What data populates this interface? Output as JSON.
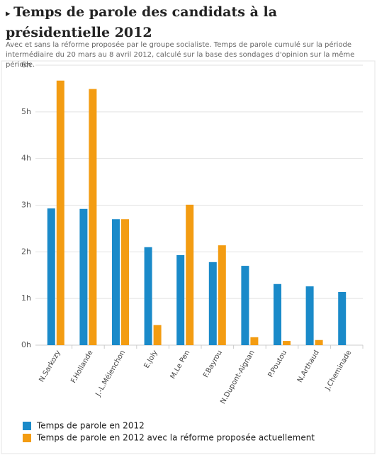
{
  "chart_data": {
    "type": "bar",
    "title": "Temps de parole des candidats à la présidentielle 2012",
    "subtitle": "Avec et sans la réforme proposée par le groupe socialiste. Temps de parole cumulé sur la période intermédiaire du 20 mars au 8 avril 2012, calculé sur la base des sondages d'opinion sur la même période.",
    "categories": [
      "N.Sarkozy",
      "F.Hollande",
      "J.-L.Mélenchon",
      "E.Joly",
      "M.Le Pen",
      "F.Bayrou",
      "N.Dupont-Aignan",
      "P.Poutou",
      "N.Arthaud",
      "J.Cheminade"
    ],
    "series": [
      {
        "name": "Temps de parole en 2012",
        "color": "#1a8ac9",
        "values": [
          2.93,
          2.92,
          2.7,
          2.1,
          1.93,
          1.78,
          1.7,
          1.31,
          1.26,
          1.14
        ]
      },
      {
        "name": "Temps de parole en 2012 avec la réforme proposée actuellement",
        "color": "#f39c12",
        "values": [
          5.67,
          5.49,
          2.7,
          0.43,
          3.01,
          2.14,
          0.17,
          0.09,
          0.11,
          null
        ]
      }
    ],
    "ylim": [
      0,
      6
    ],
    "yticks": [
      {
        "value": 0,
        "label": "0h"
      },
      {
        "value": 1,
        "label": "1h"
      },
      {
        "value": 2,
        "label": "2h"
      },
      {
        "value": 3,
        "label": "3h"
      },
      {
        "value": 4,
        "label": "4h"
      },
      {
        "value": 5,
        "label": "5h"
      },
      {
        "value": 6,
        "label": "6h"
      }
    ],
    "grid": true
  }
}
